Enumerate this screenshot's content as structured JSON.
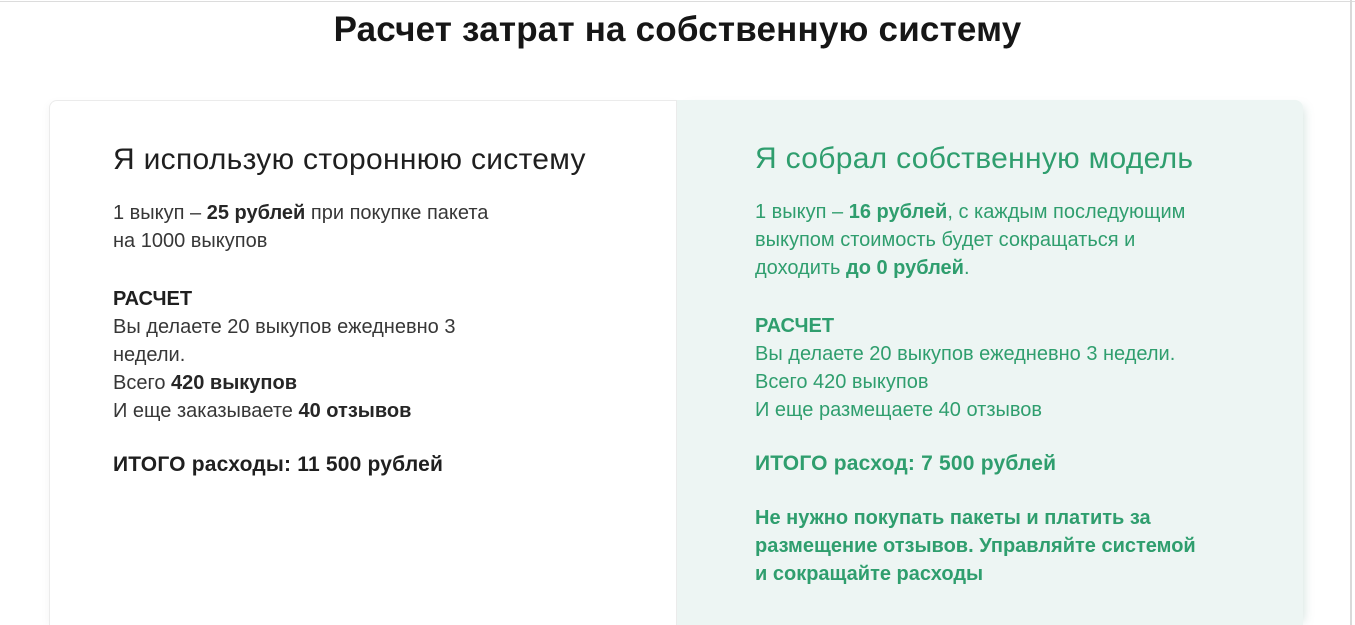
{
  "page": {
    "title": "Расчет затрат на собственную систему"
  },
  "colors": {
    "accent_green": "#2f9e6e",
    "mint_background": "#edf5f3",
    "text_dark": "#1f1f1f"
  },
  "third_party_card": {
    "heading": "Я использую стороннюю систему",
    "intro": {
      "pre": "1 выкуп – ",
      "price_bold": "25 рублей",
      "post": " при покупке пакета на 1000 выкупов"
    },
    "calc": {
      "label": "РАСЧЕТ",
      "line1": "Вы делаете 20 выкупов ежедневно 3 недели.",
      "line2_pre": "Всего ",
      "line2_bold": "420 выкупов",
      "line3_pre": "И еще заказываете ",
      "line3_bold": "40 отзывов"
    },
    "total": "ИТОГО расходы: 11 500 рублей"
  },
  "own_model_card": {
    "heading": "Я собрал собственную модель",
    "intro": {
      "pre": "1 выкуп – ",
      "price_bold": "16 рублей",
      "mid": ", с каждым последующим выкупом стоимость будет сокращаться и доходить ",
      "zero_bold": "до 0 рублей",
      "post": "."
    },
    "calc": {
      "label": "РАСЧЕТ",
      "line1": "Вы делаете 20 выкупов ежедневно 3 недели.",
      "line2": "Всего 420 выкупов",
      "line3": "И еще размещаете 40 отзывов"
    },
    "total": "ИТОГО расход: 7 500 рублей",
    "note": "Не нужно покупать пакеты и платить за размещение отзывов. Управляйте системой и сокращайте расходы"
  }
}
